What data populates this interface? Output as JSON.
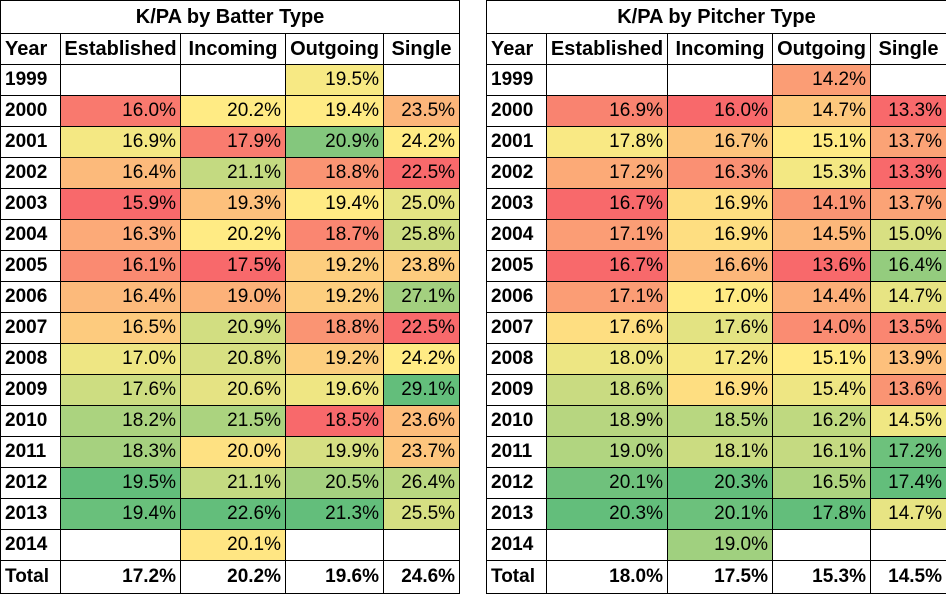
{
  "chart_data": [
    {
      "type": "table",
      "title": "K/PA by Batter Type",
      "columns": [
        "Year",
        "Established",
        "Incoming",
        "Outgoing",
        "Single"
      ],
      "rows": [
        {
          "year": "1999",
          "values": [
            "",
            "",
            "19.5%",
            ""
          ]
        },
        {
          "year": "2000",
          "values": [
            "16.0%",
            "20.2%",
            "19.4%",
            "23.5%"
          ]
        },
        {
          "year": "2001",
          "values": [
            "16.9%",
            "17.9%",
            "20.9%",
            "24.2%"
          ]
        },
        {
          "year": "2002",
          "values": [
            "16.4%",
            "21.1%",
            "18.8%",
            "22.5%"
          ]
        },
        {
          "year": "2003",
          "values": [
            "15.9%",
            "19.3%",
            "19.4%",
            "25.0%"
          ]
        },
        {
          "year": "2004",
          "values": [
            "16.3%",
            "20.2%",
            "18.7%",
            "25.8%"
          ]
        },
        {
          "year": "2005",
          "values": [
            "16.1%",
            "17.5%",
            "19.2%",
            "23.8%"
          ]
        },
        {
          "year": "2006",
          "values": [
            "16.4%",
            "19.0%",
            "19.2%",
            "27.1%"
          ]
        },
        {
          "year": "2007",
          "values": [
            "16.5%",
            "20.9%",
            "18.8%",
            "22.5%"
          ]
        },
        {
          "year": "2008",
          "values": [
            "17.0%",
            "20.8%",
            "19.2%",
            "24.2%"
          ]
        },
        {
          "year": "2009",
          "values": [
            "17.6%",
            "20.6%",
            "19.6%",
            "29.1%"
          ]
        },
        {
          "year": "2010",
          "values": [
            "18.2%",
            "21.5%",
            "18.5%",
            "23.6%"
          ]
        },
        {
          "year": "2011",
          "values": [
            "18.3%",
            "20.0%",
            "19.9%",
            "23.7%"
          ]
        },
        {
          "year": "2012",
          "values": [
            "19.5%",
            "21.1%",
            "20.5%",
            "26.4%"
          ]
        },
        {
          "year": "2013",
          "values": [
            "19.4%",
            "22.6%",
            "21.3%",
            "25.5%"
          ]
        },
        {
          "year": "2014",
          "values": [
            "",
            "20.1%",
            "",
            ""
          ]
        }
      ],
      "total": {
        "label": "Total",
        "values": [
          "17.2%",
          "20.2%",
          "19.6%",
          "24.6%"
        ]
      }
    },
    {
      "type": "table",
      "title": "K/PA by Pitcher Type",
      "columns": [
        "Year",
        "Established",
        "Incoming",
        "Outgoing",
        "Single"
      ],
      "rows": [
        {
          "year": "1999",
          "values": [
            "",
            "",
            "14.2%",
            ""
          ]
        },
        {
          "year": "2000",
          "values": [
            "16.9%",
            "16.0%",
            "14.7%",
            "13.3%"
          ]
        },
        {
          "year": "2001",
          "values": [
            "17.8%",
            "16.7%",
            "15.1%",
            "13.7%"
          ]
        },
        {
          "year": "2002",
          "values": [
            "17.2%",
            "16.3%",
            "15.3%",
            "13.3%"
          ]
        },
        {
          "year": "2003",
          "values": [
            "16.7%",
            "16.9%",
            "14.1%",
            "13.7%"
          ]
        },
        {
          "year": "2004",
          "values": [
            "17.1%",
            "16.9%",
            "14.5%",
            "15.0%"
          ]
        },
        {
          "year": "2005",
          "values": [
            "16.7%",
            "16.6%",
            "13.6%",
            "16.4%"
          ]
        },
        {
          "year": "2006",
          "values": [
            "17.1%",
            "17.0%",
            "14.4%",
            "14.7%"
          ]
        },
        {
          "year": "2007",
          "values": [
            "17.6%",
            "17.6%",
            "14.0%",
            "13.5%"
          ]
        },
        {
          "year": "2008",
          "values": [
            "18.0%",
            "17.2%",
            "15.1%",
            "13.9%"
          ]
        },
        {
          "year": "2009",
          "values": [
            "18.6%",
            "16.9%",
            "15.4%",
            "13.6%"
          ]
        },
        {
          "year": "2010",
          "values": [
            "18.9%",
            "18.5%",
            "16.2%",
            "14.5%"
          ]
        },
        {
          "year": "2011",
          "values": [
            "19.0%",
            "18.1%",
            "16.1%",
            "17.2%"
          ]
        },
        {
          "year": "2012",
          "values": [
            "20.1%",
            "20.3%",
            "16.5%",
            "17.4%"
          ]
        },
        {
          "year": "2013",
          "values": [
            "20.3%",
            "20.1%",
            "17.8%",
            "14.7%"
          ]
        },
        {
          "year": "2014",
          "values": [
            "",
            "19.0%",
            "",
            ""
          ]
        }
      ],
      "total": {
        "label": "Total",
        "values": [
          "18.0%",
          "17.5%",
          "15.3%",
          "14.5%"
        ]
      }
    }
  ],
  "colors": {
    "low": "#f8696b",
    "mid": "#ffeb84",
    "high": "#63be7b",
    "empty": "#ffffff"
  }
}
